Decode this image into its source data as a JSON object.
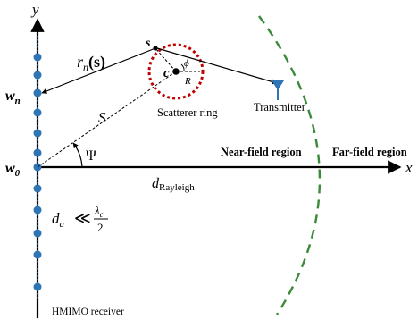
{
  "diagram": {
    "axes": {
      "x_label": "x",
      "y_label": "y"
    },
    "receiver": {
      "name": "HMIMO receiver",
      "label_wn": "w",
      "label_wn_sub": "n",
      "label_w0": "w",
      "label_w0_sub": "0"
    },
    "distance_label": {
      "main": "r",
      "sub": "n",
      "arg": "(s)"
    },
    "scatterer": {
      "name": "Scatterer ring",
      "center_label": "c",
      "point_label": "s",
      "phi_label": "ϕ",
      "radius_label": "R"
    },
    "transmitter": {
      "name": "Transmitter"
    },
    "geometry_labels": {
      "S": "S",
      "Psi": "Ψ",
      "d_main": "d",
      "d_sub": "Rayleigh",
      "da_main": "d",
      "da_sub": "a",
      "da_relation": "≪",
      "lambda": "λ",
      "lambda_sub": "c",
      "two": "2"
    },
    "regions": {
      "near": "Near-field region",
      "far": "Far-field region"
    },
    "colors": {
      "antenna": "#2e75b6",
      "ring": "#c00000",
      "boundary": "#3a8a3a",
      "transmitter": "#2e75b6",
      "line": "#000000"
    }
  }
}
